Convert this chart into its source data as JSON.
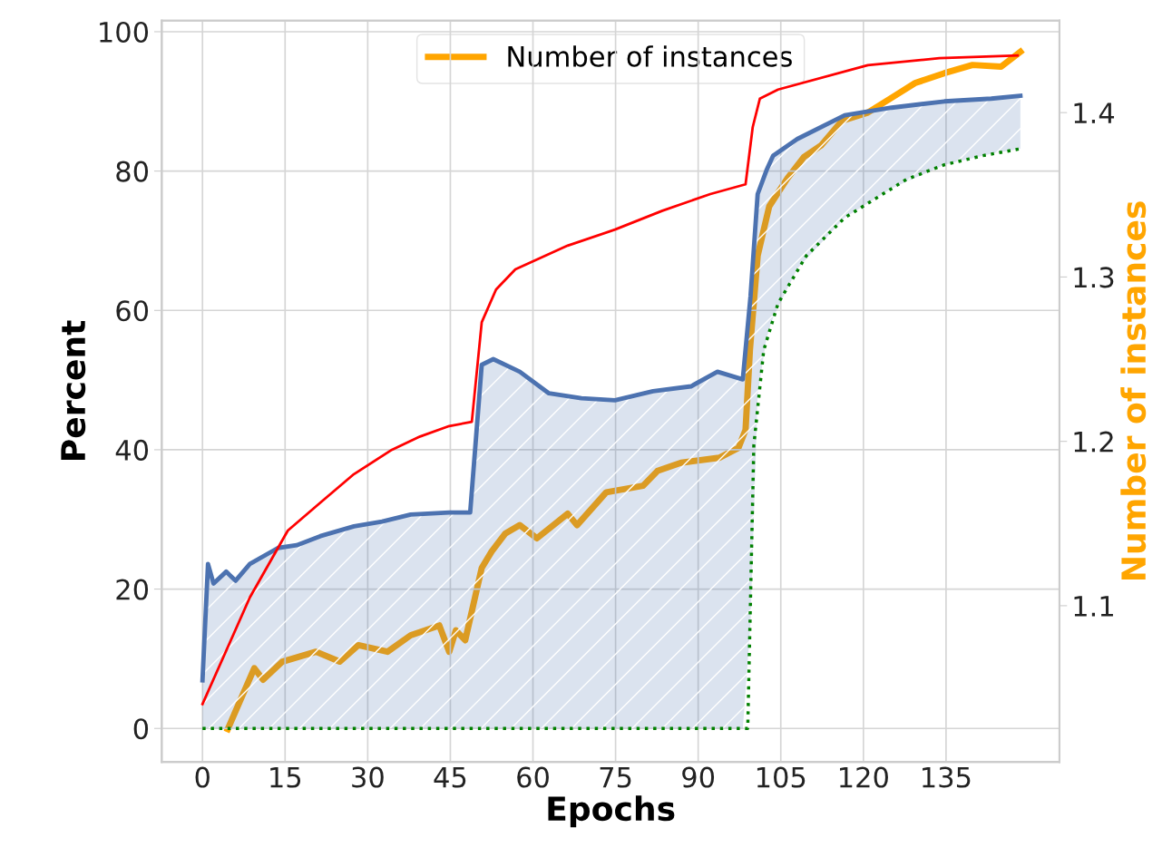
{
  "chart_data": {
    "type": "line",
    "xlabel": "Epochs",
    "ylabel": "Percent",
    "y2label": "Number of instances",
    "xlim": [
      -7.4,
      155.6
    ],
    "xticks": [
      0,
      15,
      30,
      45,
      60,
      75,
      90,
      105,
      120,
      135
    ],
    "ylim": [
      -4.8,
      101.6
    ],
    "yticks": [
      0,
      20,
      40,
      60,
      80,
      100
    ],
    "y2lim": [
      1.005,
      1.456
    ],
    "y2ticks": [
      1.1,
      1.2,
      1.3,
      1.4
    ],
    "grid": true,
    "legend": "top",
    "marker": "none",
    "series": [
      {
        "color": "#ff0000",
        "line_style": "solid",
        "x": [
          0,
          8.6,
          15.5,
          21.4,
          27.5,
          34.4,
          39.5,
          44.8,
          48.9,
          50.7,
          53.3,
          56.8,
          66.3,
          74.9,
          83.5,
          92.2,
          98.6,
          99.9,
          101.2,
          104.5,
          120.8,
          133.8,
          148
        ],
        "values": [
          3.5,
          18.8,
          28.4,
          32.4,
          36.5,
          40,
          41.9,
          43.4,
          44,
          58.3,
          63,
          65.9,
          69.3,
          71.6,
          74.3,
          76.7,
          78.1,
          86.3,
          90.4,
          91.7,
          95.2,
          96.2,
          96.6
        ]
      },
      {
        "color": "#4c72b0",
        "line_style": "solid",
        "x": [
          0,
          1,
          2,
          4.3,
          6,
          8.6,
          13.7,
          17.1,
          21.4,
          27.5,
          32.6,
          37.8,
          44.8,
          48.6,
          50.7,
          52.8,
          57.6,
          62.9,
          68.8,
          74.9,
          81.8,
          88.7,
          93.5,
          98.1,
          99.5,
          100.8,
          102.4,
          103.6,
          108,
          116.6,
          125.1,
          134.7,
          143.2,
          148.5
        ],
        "values": [
          6.9,
          23.6,
          20.8,
          22.5,
          21.2,
          23.6,
          25.9,
          26.3,
          27.6,
          29,
          29.7,
          30.7,
          31,
          31,
          52.2,
          53,
          51.2,
          48.1,
          47.4,
          47.1,
          48.4,
          49.1,
          51.2,
          50.1,
          62,
          76.7,
          80.1,
          82.2,
          84.6,
          88,
          89.1,
          90,
          90.4,
          90.8
        ],
        "lower": [
          0,
          0,
          0,
          0,
          0,
          0,
          0,
          0,
          0,
          0,
          0,
          0,
          0,
          0,
          0,
          0,
          0,
          0,
          0,
          0,
          0,
          0,
          0,
          0,
          15,
          48,
          56,
          59,
          66,
          73.3,
          77.5,
          80.9,
          82.5,
          83.2
        ],
        "upper": [
          6.9,
          23.6,
          20.8,
          22.5,
          21.2,
          23.6,
          25.9,
          26.3,
          27.6,
          29,
          29.7,
          30.7,
          31,
          31,
          52.2,
          53,
          51.2,
          48.1,
          47.4,
          47.1,
          48.4,
          49.1,
          51.2,
          50.1,
          62,
          76.7,
          80.1,
          82.2,
          84.6,
          88,
          89.1,
          90,
          90.4,
          90.8
        ]
      },
      {
        "color": "#008000",
        "line_style": "dotted",
        "x": [
          0,
          99,
          100.1,
          101.9,
          104.5,
          109.6,
          116.6,
          127.8,
          134.7,
          141.6,
          148.5
        ],
        "values": [
          0,
          0,
          40.6,
          54.3,
          61,
          67.8,
          73.3,
          78.8,
          80.9,
          82.2,
          83.2
        ]
      },
      {
        "name": "Number of instances",
        "color": "#ffa500",
        "line_style": "solid",
        "axis": "y2",
        "x": [
          4.6,
          9.4,
          11,
          14.5,
          20.6,
          24.9,
          28.3,
          33.6,
          37.8,
          43,
          44.8,
          46,
          47.7,
          50.7,
          52.5,
          55,
          57.6,
          60.7,
          66.3,
          68,
          73.3,
          80,
          82.6,
          86.9,
          93.8,
          97.3,
          98.6,
          99.4,
          100.8,
          102.9,
          106.2,
          109.2,
          112.3,
          116.1,
          120.8,
          125.1,
          129.4,
          134.7,
          139.8,
          145,
          148.5
        ],
        "values": [
          1.025,
          1.062,
          1.055,
          1.066,
          1.072,
          1.066,
          1.076,
          1.072,
          1.082,
          1.088,
          1.072,
          1.085,
          1.079,
          1.123,
          1.133,
          1.144,
          1.149,
          1.141,
          1.156,
          1.149,
          1.169,
          1.173,
          1.182,
          1.187,
          1.19,
          1.196,
          1.207,
          1.256,
          1.313,
          1.343,
          1.36,
          1.373,
          1.38,
          1.395,
          1.4,
          1.409,
          1.418,
          1.424,
          1.429,
          1.428,
          1.437
        ]
      }
    ]
  }
}
